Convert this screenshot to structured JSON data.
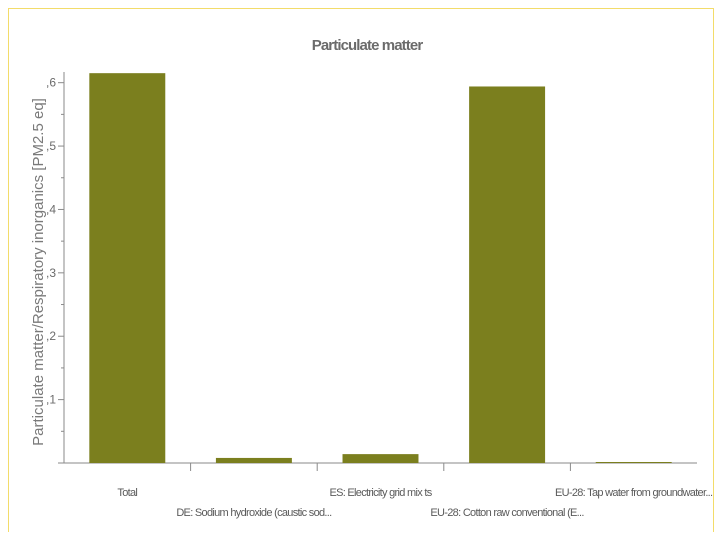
{
  "chart_data": {
    "type": "bar",
    "title": "Particulate matter",
    "xlabel": "",
    "ylabel": "Particulate matter/Respiratory inorganics [PM2.5 eq]",
    "ylim": [
      0,
      0.62
    ],
    "yticks": [
      0,
      0.1,
      0.2,
      0.3,
      0.4,
      0.5,
      0.6
    ],
    "ytick_labels": [
      "",
      ",1",
      ",2",
      ",3",
      ",4",
      ",5",
      ",6"
    ],
    "categories": [
      "Total",
      "DE: Sodium hydroxide (caustic sod...",
      "ES: Electricity grid mix ts",
      "EU-28: Cotton raw conventional (E...",
      "EU-28: Tap water from groundwater..."
    ],
    "values": [
      0.615,
      0.008,
      0.014,
      0.594,
      0.001
    ],
    "bar_color": "#7b7f1e",
    "grid": false,
    "legend": "none"
  }
}
